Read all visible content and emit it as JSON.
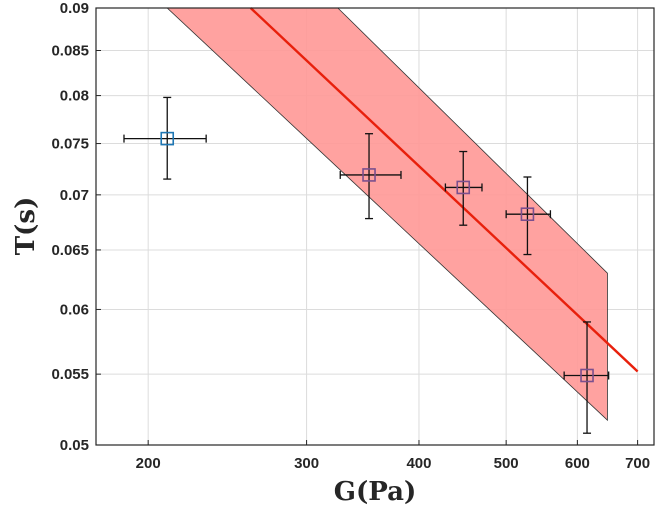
{
  "chart_data": {
    "type": "scatter",
    "xlabel": "G(Pa)",
    "ylabel": "T(s)",
    "x_scale": "log",
    "y_scale": "log",
    "xlim": [
      175,
      730
    ],
    "ylim": [
      0.05,
      0.09
    ],
    "x_ticks": [
      200,
      300,
      400,
      500,
      600,
      700
    ],
    "x_tick_labels": [
      "200",
      "300",
      "400",
      "500",
      "600",
      "700"
    ],
    "y_ticks": [
      0.05,
      0.055,
      0.06,
      0.065,
      0.07,
      0.075,
      0.08,
      0.085,
      0.09
    ],
    "y_tick_labels": [
      "0.05",
      "0.055",
      "0.06",
      "0.065",
      "0.07",
      "0.075",
      "0.08",
      "0.085",
      "0.09"
    ],
    "grid": true,
    "points": [
      {
        "x": 210,
        "y": 0.0755,
        "x_low": 188,
        "x_high": 232,
        "y_low": 0.0715,
        "y_high": 0.0798,
        "color": "#1f77b4"
      },
      {
        "x": 352,
        "y": 0.0719,
        "x_low": 327,
        "x_high": 382,
        "y_low": 0.0678,
        "y_high": 0.076,
        "color": "#7b4f8e"
      },
      {
        "x": 448,
        "y": 0.0707,
        "x_low": 428,
        "x_high": 470,
        "y_low": 0.0672,
        "y_high": 0.0742,
        "color": "#7b4f8e"
      },
      {
        "x": 528,
        "y": 0.0682,
        "x_low": 500,
        "x_high": 560,
        "y_low": 0.0646,
        "y_high": 0.0717,
        "color": "#7b4f8e"
      },
      {
        "x": 615,
        "y": 0.0549,
        "x_low": 580,
        "x_high": 650,
        "y_low": 0.0508,
        "y_high": 0.059,
        "color": "#7b4f8e"
      }
    ],
    "fit_line": {
      "x": [
        260,
        700
      ],
      "y": [
        0.09,
        0.0552
      ],
      "color": "#e8200c"
    },
    "confidence_band": {
      "upper": {
        "x": [
          213,
          325,
          648
        ],
        "y": [
          0.09,
          0.09,
          0.063
        ]
      },
      "lower": {
        "x": [
          210,
          648
        ],
        "y": [
          0.09,
          0.0517
        ]
      },
      "color": "#ff9896"
    }
  }
}
